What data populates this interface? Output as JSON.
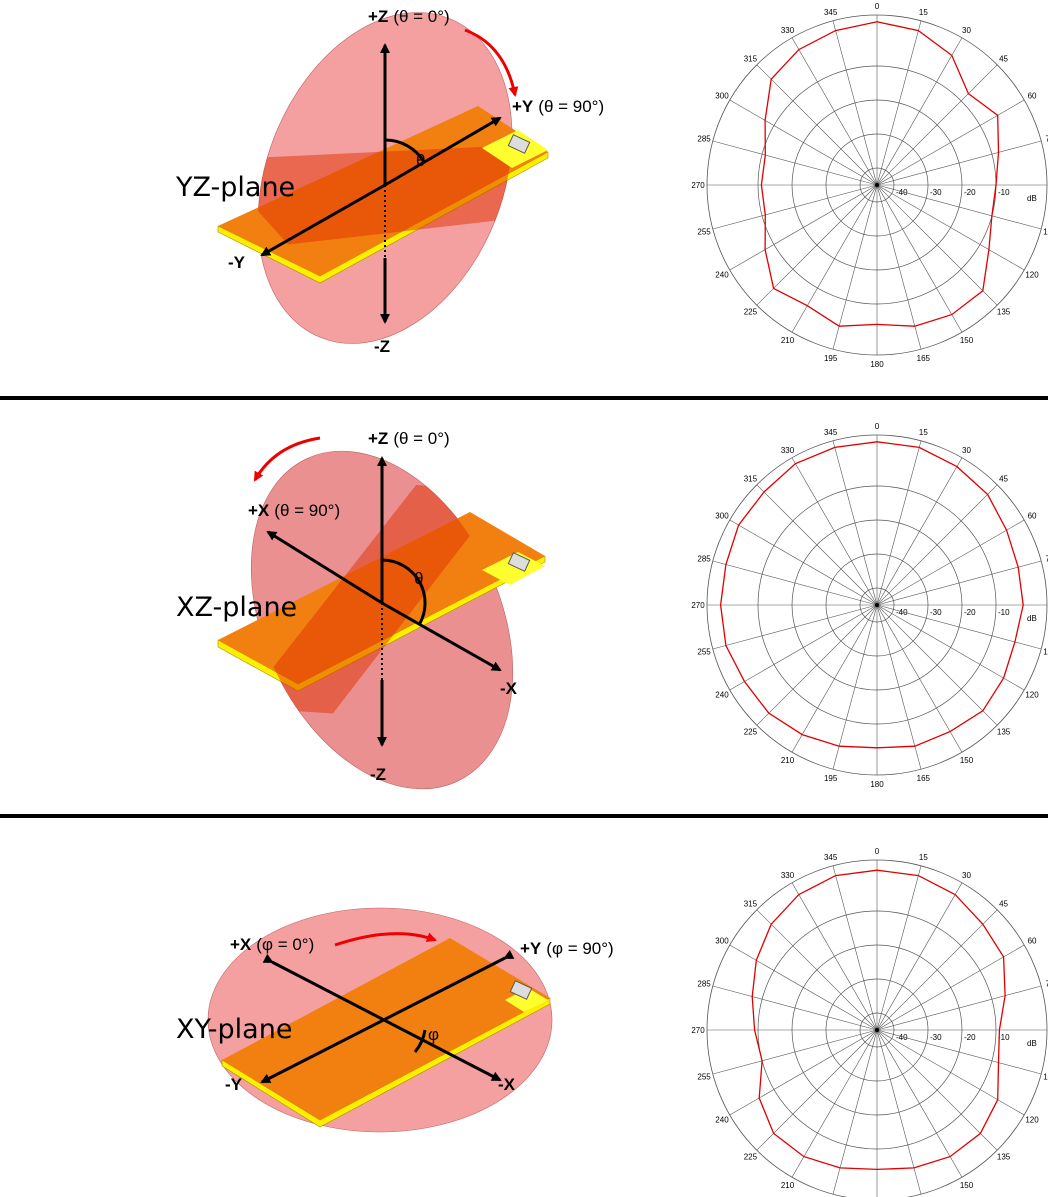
{
  "rows": [
    {
      "plane": "YZ-plane",
      "labels": [
        {
          "bold": "+Z",
          "text": "(θ = 0°)"
        },
        {
          "bold": "+Y",
          "text": "(θ = 90°)"
        },
        {
          "text": "θ"
        },
        {
          "bold": "-Y"
        },
        {
          "bold": "-Z"
        }
      ]
    },
    {
      "plane": "XZ-plane",
      "labels": [
        {
          "bold": "+Z",
          "text": "(θ = 0°)"
        },
        {
          "bold": "+X",
          "text": "(θ = 90°)"
        },
        {
          "text": "θ"
        },
        {
          "bold": "-X"
        },
        {
          "bold": "-Z"
        }
      ]
    },
    {
      "plane": "XY-plane",
      "labels": [
        {
          "bold": "+X",
          "text": "(φ = 0°)"
        },
        {
          "bold": "+Y",
          "text": "(φ = 90°)"
        },
        {
          "text": "φ"
        },
        {
          "bold": "-Y"
        },
        {
          "bold": "-X"
        }
      ]
    }
  ],
  "chart_data": [
    {
      "type": "polar",
      "theta": [
        0,
        15,
        30,
        45,
        60,
        75,
        90,
        105,
        120,
        135,
        150,
        165,
        180,
        195,
        210,
        225,
        240,
        255,
        270,
        285,
        300,
        315,
        330,
        345
      ],
      "values": [
        3,
        2,
        -1,
        -7,
        -4,
        -8,
        -10,
        -10,
        -7,
        -1,
        -1,
        -2,
        -4,
        -2,
        -4,
        -2,
        -7,
        -11,
        -11,
        -11,
        -7,
        -1,
        1,
        2
      ],
      "color": "#e00000",
      "rlim": [
        -45,
        5
      ],
      "rticks": [
        -40,
        -30,
        -20,
        -10
      ],
      "r_unit": "dB"
    },
    {
      "type": "polar",
      "theta": [
        0,
        15,
        30,
        45,
        60,
        75,
        90,
        105,
        120,
        135,
        150,
        165,
        180,
        195,
        210,
        225,
        240,
        255,
        270,
        285,
        300,
        315,
        330,
        345
      ],
      "values": [
        3,
        3,
        2,
        1,
        -1,
        -2,
        -2,
        -3,
        -2,
        -1,
        -2,
        -2,
        -3,
        -2,
        -1,
        0,
        0,
        1,
        1,
        1,
        2,
        2,
        3,
        3
      ],
      "color": "#e00000",
      "rlim": [
        -45,
        5
      ],
      "rticks": [
        -40,
        -30,
        -20,
        -10
      ],
      "r_unit": "dB"
    },
    {
      "type": "polar",
      "theta": [
        0,
        15,
        30,
        45,
        60,
        75,
        90,
        105,
        120,
        135,
        150,
        165,
        180,
        195,
        210,
        225,
        240,
        255,
        270,
        285,
        300,
        315,
        330,
        345
      ],
      "values": [
        2,
        2,
        1,
        -1,
        -2,
        -6,
        -9,
        -8,
        -4,
        -2,
        -2,
        -3,
        -4,
        -3,
        -2,
        -2,
        -5,
        -10,
        -9,
        -7,
        -4,
        -1,
        1,
        2
      ],
      "color": "#e00000",
      "rlim": [
        -45,
        5
      ],
      "rticks": [
        -40,
        -30,
        -20,
        -10
      ],
      "r_unit": "dB"
    }
  ]
}
